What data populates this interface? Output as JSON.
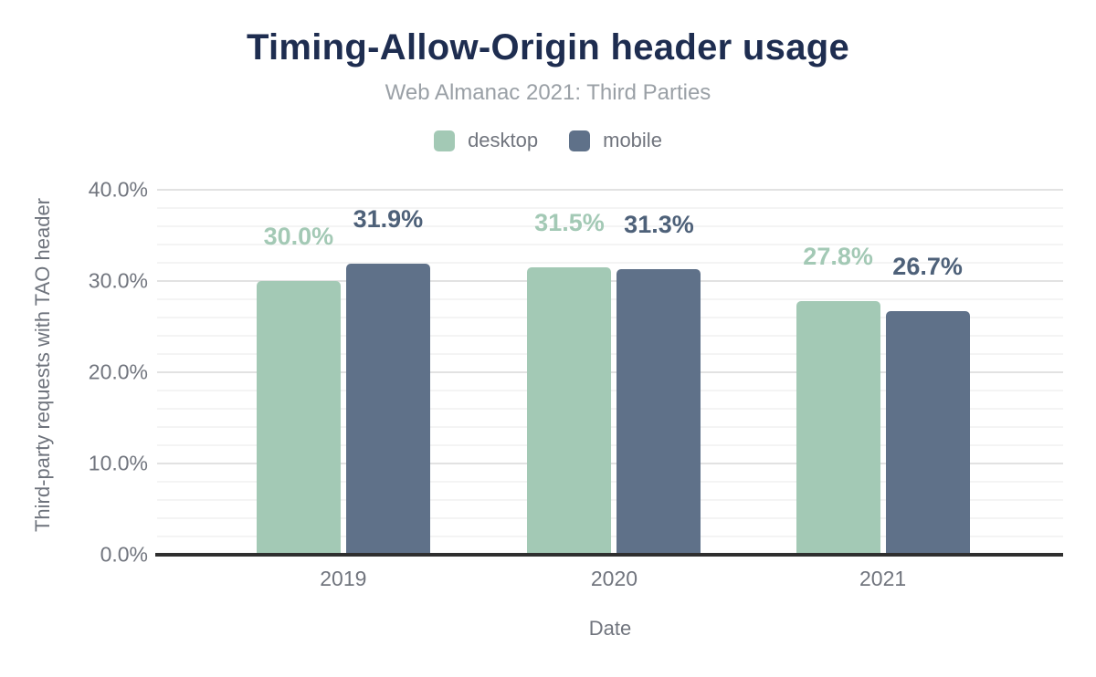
{
  "header": {
    "title": "Timing-Allow-Origin header usage",
    "subtitle": "Web Almanac 2021: Third Parties"
  },
  "legend": {
    "items": [
      {
        "label": "desktop",
        "color": "#a3c9b5"
      },
      {
        "label": "mobile",
        "color": "#5f7189"
      }
    ]
  },
  "colors": {
    "title_text": "#1e2d50",
    "subtitle_text": "#9aa0a6",
    "axis_text": "#71757e",
    "axis_line": "#2f2f2f",
    "grid_major": "#e2e2e2",
    "grid_minor": "#f4f4f4",
    "desktop_series": "#a3c9b5",
    "mobile_series": "#5f7189",
    "desktop_value_label": "#a3c9b5",
    "mobile_value_label": "#4e6179"
  },
  "chart_data": {
    "type": "bar",
    "title": "Timing-Allow-Origin header usage",
    "subtitle": "Web Almanac 2021: Third Parties",
    "categories": [
      "2019",
      "2020",
      "2021"
    ],
    "series": [
      {
        "name": "desktop",
        "color": "#a3c9b5",
        "label_color": "#a3c9b5",
        "values": [
          30.0,
          31.5,
          27.8
        ],
        "labels": [
          "30.0%",
          "31.5%",
          "27.8%"
        ]
      },
      {
        "name": "mobile",
        "color": "#5f7189",
        "label_color": "#4e6179",
        "values": [
          31.9,
          31.3,
          26.7
        ],
        "labels": [
          "31.9%",
          "31.3%",
          "26.7%"
        ]
      }
    ],
    "xlabel": "Date",
    "ylabel": "Third-party requests with TAO header",
    "ylim": [
      0,
      40
    ],
    "yticks": [
      {
        "value": 0,
        "label": "0.0%"
      },
      {
        "value": 10,
        "label": "10.0%"
      },
      {
        "value": 20,
        "label": "20.0%"
      },
      {
        "value": 30,
        "label": "30.0%"
      },
      {
        "value": 40,
        "label": "40.0%"
      }
    ],
    "grid": {
      "minor_step": 2,
      "major_step": 10
    },
    "legend_position": "top"
  }
}
